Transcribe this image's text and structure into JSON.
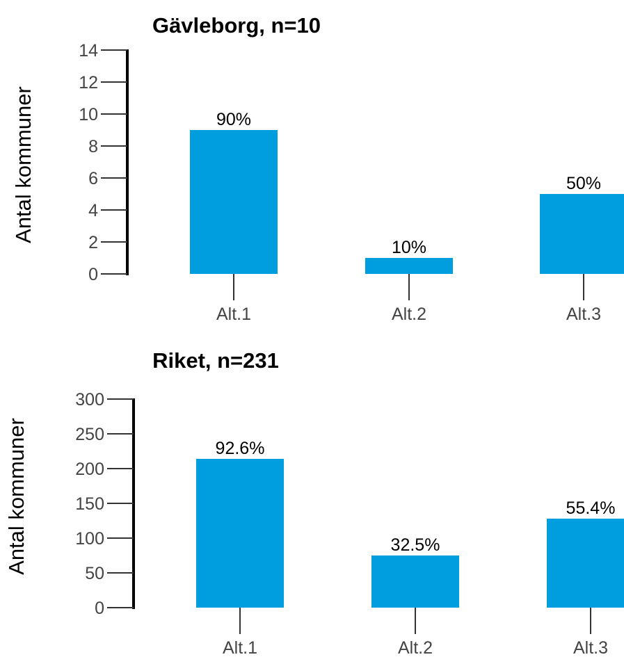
{
  "chart_data": [
    {
      "type": "bar",
      "title": "Gävleborg, n=10",
      "ylabel": "Antal kommuner",
      "xlabel": "",
      "categories": [
        "Alt.1",
        "Alt.2",
        "Alt.3"
      ],
      "values": [
        9,
        1,
        5
      ],
      "data_labels": [
        "90%",
        "10%",
        "50%"
      ],
      "yticks": [
        0,
        2,
        4,
        6,
        8,
        10,
        12,
        14
      ],
      "ylim": [
        0,
        14
      ],
      "grid": false,
      "legend": "none",
      "bar_color": "#009ddf"
    },
    {
      "type": "bar",
      "title": "Riket, n=231",
      "ylabel": "Antal kommuner",
      "xlabel": "",
      "categories": [
        "Alt.1",
        "Alt.2",
        "Alt.3"
      ],
      "values": [
        214,
        75,
        128
      ],
      "data_labels": [
        "92.6%",
        "32.5%",
        "55.4%"
      ],
      "yticks": [
        0,
        50,
        100,
        150,
        200,
        250,
        300
      ],
      "ylim": [
        0,
        300
      ],
      "grid": false,
      "legend": "none",
      "bar_color": "#009ddf"
    }
  ]
}
